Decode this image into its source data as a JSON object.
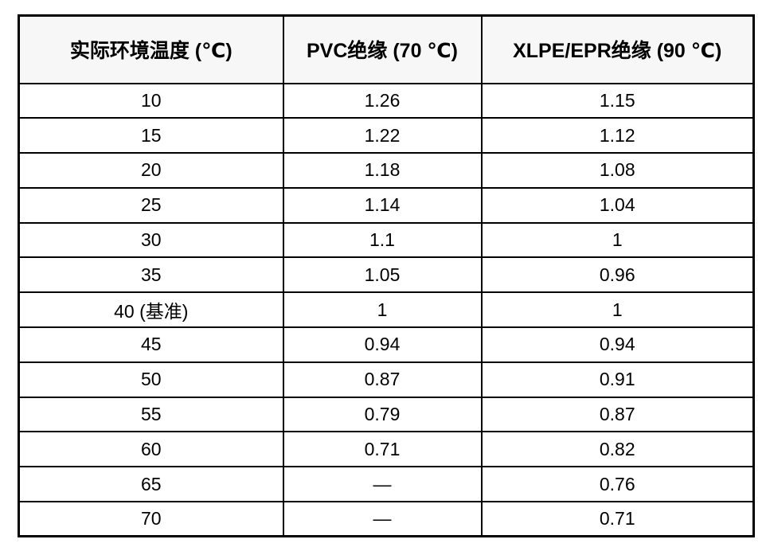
{
  "chart_data": {
    "type": "table",
    "columns": [
      "实际环境温度 (℃)",
      "PVC绝缘 (70 ℃)",
      "XLPE/EPR绝缘 (90 ℃)"
    ],
    "rows": [
      [
        "10",
        "1.26",
        "1.15"
      ],
      [
        "15",
        "1.22",
        "1.12"
      ],
      [
        "20",
        "1.18",
        "1.08"
      ],
      [
        "25",
        "1.14",
        "1.04"
      ],
      [
        "30",
        "1.1",
        "1"
      ],
      [
        "35",
        "1.05",
        "0.96"
      ],
      [
        "40 (基准)",
        "1",
        "1"
      ],
      [
        "45",
        "0.94",
        "0.94"
      ],
      [
        "50",
        "0.87",
        "0.91"
      ],
      [
        "55",
        "0.79",
        "0.87"
      ],
      [
        "60",
        "0.71",
        "0.82"
      ],
      [
        "65",
        "—",
        "0.76"
      ],
      [
        "70",
        "—",
        "0.71"
      ]
    ],
    "baseline_row_label": "40 (基准)",
    "missing_value_symbol": "—"
  },
  "colors": {
    "header_background": "#f7f7f7",
    "body_background": "#ffffff",
    "border": "#000000",
    "text": "#000000"
  }
}
